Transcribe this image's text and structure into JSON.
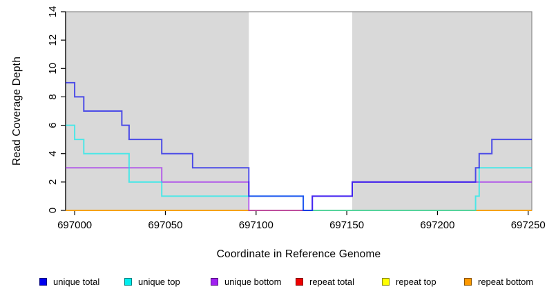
{
  "chart_data": {
    "type": "line",
    "step": true,
    "title": "",
    "xlabel": "Coordinate in Reference Genome",
    "ylabel": "Read Coverage Depth",
    "xlim": [
      696995,
      697252
    ],
    "ylim": [
      0,
      14
    ],
    "x_ticks": [
      697000,
      697050,
      697100,
      697150,
      697200,
      697250
    ],
    "y_ticks": [
      0,
      2,
      4,
      6,
      8,
      10,
      12,
      14
    ],
    "grid": false,
    "legend_position": "bottom",
    "plot_background": "#ffffff",
    "shaded_regions": [
      {
        "from": 696995,
        "to": 697096,
        "color": "#d9d9d9"
      },
      {
        "from": 697153,
        "to": 697252,
        "color": "#d9d9d9"
      }
    ],
    "series": [
      {
        "name": "unique total",
        "color": "#0000EE",
        "points": [
          [
            696995,
            9
          ],
          [
            697000,
            8
          ],
          [
            697005,
            7
          ],
          [
            697026,
            6
          ],
          [
            697030,
            5
          ],
          [
            697048,
            4
          ],
          [
            697065,
            3
          ],
          [
            697096,
            1
          ],
          [
            697126,
            0
          ],
          [
            697131,
            1
          ],
          [
            697153,
            2
          ],
          [
            697221,
            3
          ],
          [
            697223,
            4
          ],
          [
            697230,
            5
          ]
        ]
      },
      {
        "name": "unique top",
        "color": "#00EEEE",
        "points": [
          [
            696995,
            6
          ],
          [
            697000,
            5
          ],
          [
            697005,
            4
          ],
          [
            697030,
            2
          ],
          [
            697048,
            1
          ],
          [
            697126,
            0
          ],
          [
            697221,
            1
          ],
          [
            697223,
            3
          ]
        ]
      },
      {
        "name": "unique bottom",
        "color": "#A020F0",
        "points": [
          [
            696995,
            3
          ],
          [
            697048,
            2
          ],
          [
            697096,
            0
          ],
          [
            697131,
            1
          ],
          [
            697153,
            2
          ]
        ]
      },
      {
        "name": "repeat total",
        "color": "#EE0000",
        "points": [
          [
            696995,
            0
          ]
        ]
      },
      {
        "name": "repeat top",
        "color": "#FFFF00",
        "points": [
          [
            696995,
            0
          ]
        ]
      },
      {
        "name": "repeat bottom",
        "color": "#FF9900",
        "points": [
          [
            696995,
            0
          ]
        ]
      }
    ]
  },
  "legend": {
    "items": [
      {
        "label": "unique total",
        "color": "#0000EE"
      },
      {
        "label": "unique top",
        "color": "#00EEEE"
      },
      {
        "label": "unique bottom",
        "color": "#A020F0"
      },
      {
        "label": "repeat total",
        "color": "#EE0000"
      },
      {
        "label": "repeat top",
        "color": "#FFFF00"
      },
      {
        "label": "repeat bottom",
        "color": "#FF9900"
      }
    ]
  }
}
